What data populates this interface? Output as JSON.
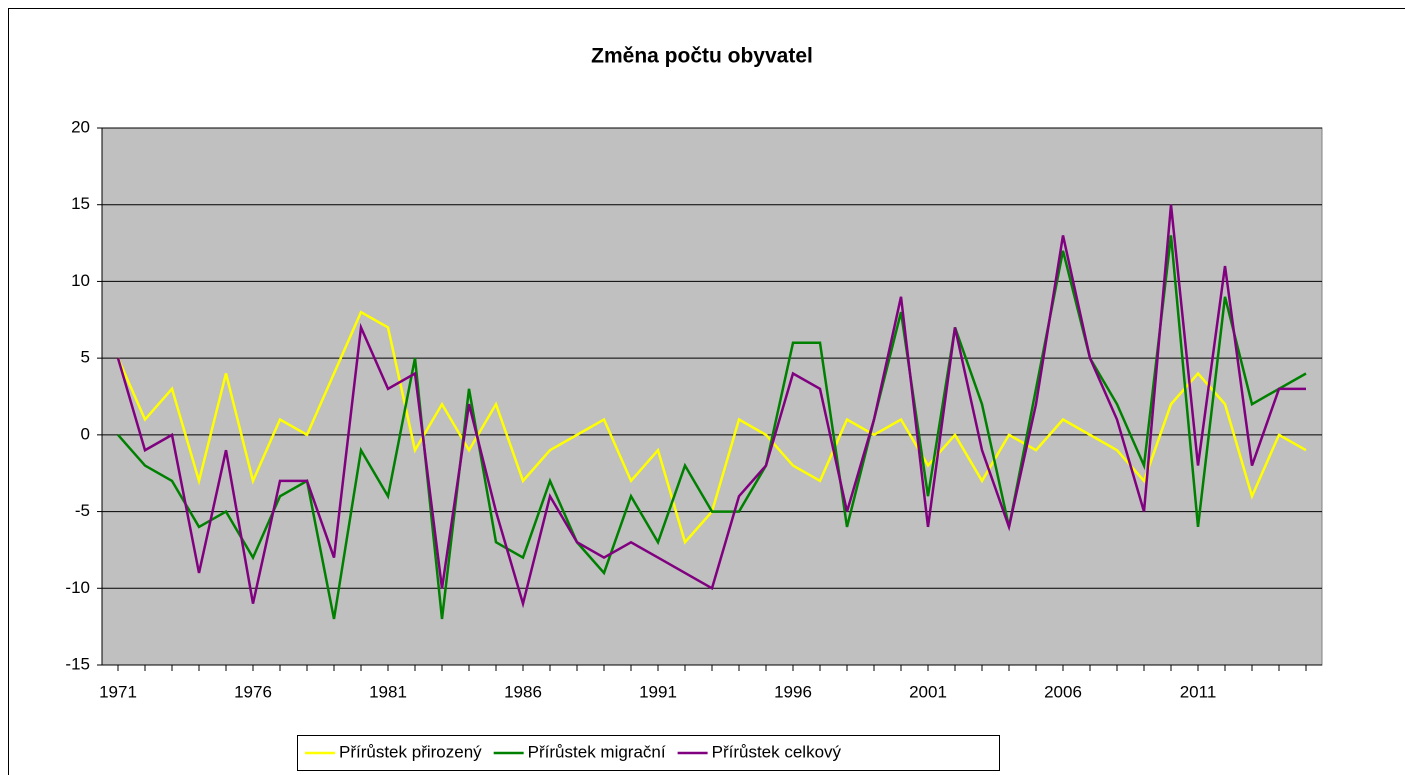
{
  "chart_data": {
    "type": "line",
    "title": "Změna počtu obyvatel",
    "categories": [
      "1971",
      null,
      null,
      null,
      null,
      "1976",
      null,
      null,
      null,
      null,
      "1981",
      null,
      null,
      null,
      null,
      "1986",
      null,
      null,
      null,
      null,
      "1991",
      null,
      null,
      null,
      null,
      "1996",
      null,
      null,
      null,
      null,
      "2001",
      null,
      null,
      null,
      null,
      "2006",
      null,
      null,
      null,
      null,
      "2011",
      null,
      null,
      null,
      null
    ],
    "series": [
      {
        "name": "Přírůstek přirozený",
        "color": "#ffff00",
        "values": [
          5,
          1,
          3,
          -3,
          4,
          -3,
          1,
          0,
          4,
          8,
          7,
          -1,
          2,
          -1,
          2,
          -3,
          -1,
          0,
          1,
          -3,
          -1,
          -7,
          -5,
          1,
          0,
          -2,
          -3,
          1,
          0,
          1,
          -2,
          0,
          -3,
          0,
          -1,
          1,
          0,
          -1,
          -3,
          2,
          4,
          2,
          -4,
          0,
          -1
        ]
      },
      {
        "name": "Přírůstek migrační",
        "color": "#008000",
        "values": [
          0,
          -2,
          -3,
          -6,
          -5,
          -8,
          -4,
          -3,
          -12,
          -1,
          -4,
          5,
          -12,
          3,
          -7,
          -8,
          -3,
          -7,
          -9,
          -4,
          -7,
          -2,
          -5,
          -5,
          -2,
          6,
          6,
          -6,
          1,
          8,
          -4,
          7,
          2,
          -6,
          3,
          12,
          5,
          2,
          -2,
          13,
          -6,
          9,
          2,
          3,
          4
        ]
      },
      {
        "name": "Přírůstek celkový",
        "color": "#800080",
        "values": [
          5,
          -1,
          0,
          -9,
          -1,
          -11,
          -3,
          -3,
          -8,
          7,
          3,
          4,
          -10,
          2,
          -5,
          -11,
          -4,
          -7,
          -8,
          -7,
          -8,
          -9,
          -10,
          -4,
          -2,
          4,
          3,
          -5,
          1,
          9,
          -6,
          7,
          -1,
          -6,
          2,
          13,
          5,
          1,
          -5,
          15,
          -2,
          11,
          -2,
          3,
          3
        ]
      }
    ],
    "ylim": [
      -15,
      20
    ],
    "yticks": [
      -15,
      -10,
      -5,
      0,
      5,
      10,
      15,
      20
    ],
    "grid": true,
    "legend": "bottom"
  }
}
